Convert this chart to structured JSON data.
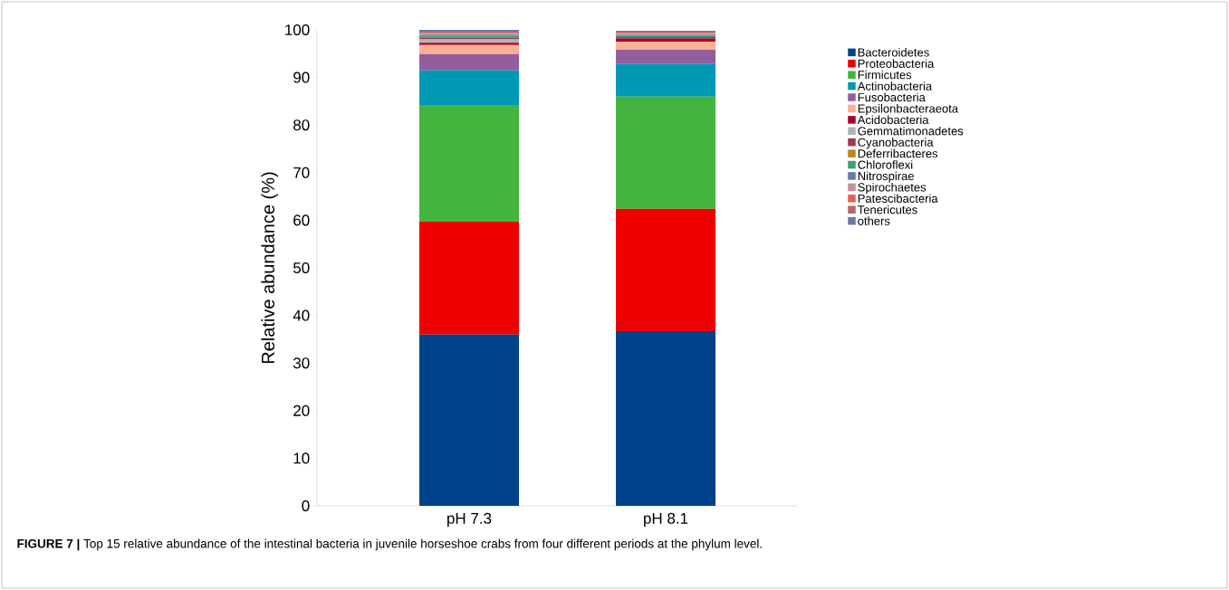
{
  "chart_data": {
    "type": "bar",
    "stacked": true,
    "ylabel": "Relative abundance (%)",
    "categories": [
      "pH 7.3",
      "pH 8.1"
    ],
    "ylim": [
      0,
      100
    ],
    "yticks": [
      0,
      10,
      20,
      30,
      40,
      50,
      60,
      70,
      80,
      90,
      100
    ],
    "legend": "top right",
    "grid": false,
    "annotations": [
      "**FIGURE 7 |** Top 15 relative abundance of the intestinal bacteria in juvenile horseshoe crabs from four different periods at the phylum level."
    ],
    "series": [
      {
        "name": "Bacteroidetes",
        "color": "#00428c",
        "values": [
          36.0,
          36.7
        ]
      },
      {
        "name": "Proteobacteria",
        "color": "#ee0000",
        "values": [
          23.7,
          25.7
        ]
      },
      {
        "name": "Firmicutes",
        "color": "#42b43f",
        "values": [
          24.5,
          23.6
        ]
      },
      {
        "name": "Actinobacteria",
        "color": "#0099b4",
        "values": [
          7.3,
          6.8
        ]
      },
      {
        "name": "Fusobacteria",
        "color": "#925e9f",
        "values": [
          3.4,
          3.0
        ]
      },
      {
        "name": "Epsilonbacteraeota",
        "color": "#fdaf91",
        "values": [
          1.9,
          1.7
        ]
      },
      {
        "name": "Acidobacteria",
        "color": "#ad002a",
        "values": [
          0.5,
          0.7
        ]
      },
      {
        "name": "Gemmatimonadetes",
        "color": "#adb6b6",
        "values": [
          0.7,
          null
        ]
      },
      {
        "name": "Cyanobacteria",
        "color": "#9e3a50",
        "values": [
          0.3,
          0.3
        ]
      },
      {
        "name": "Deferribacteres",
        "color": "#b8861a",
        "values": [
          0.2,
          null
        ]
      },
      {
        "name": "Chloroflexi",
        "color": "#3a9e7a",
        "values": [
          0.3,
          0.3
        ]
      },
      {
        "name": "Nitrospirae",
        "color": "#6a7aaa",
        "values": [
          0.2,
          0.2
        ]
      },
      {
        "name": "Spirochaetes",
        "color": "#cc8a9e",
        "values": [
          0.2,
          0.2
        ]
      },
      {
        "name": "Patescibacteria",
        "color": "#dc6454",
        "values": [
          0.2,
          0.2
        ]
      },
      {
        "name": "Tenericutes",
        "color": "#b86a6a",
        "values": [
          0.2,
          0.2
        ]
      },
      {
        "name": "others",
        "color": "#6a7aa8",
        "values": [
          0.4,
          0.2
        ]
      }
    ]
  }
}
